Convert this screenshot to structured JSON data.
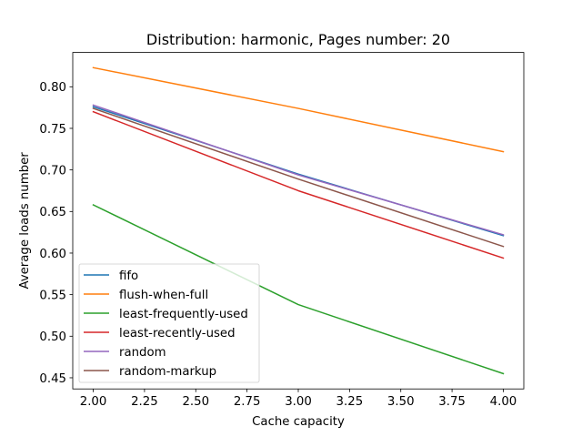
{
  "chart_data": {
    "type": "line",
    "title": "Distribution: harmonic, Pages number: 20",
    "xlabel": "Cache capacity",
    "ylabel": "Average loads number",
    "x": [
      2.0,
      3.0,
      4.0
    ],
    "xlim": [
      1.9,
      4.1
    ],
    "ylim": [
      0.4366,
      0.8413
    ],
    "xticks": [
      "2.00",
      "2.25",
      "2.50",
      "2.75",
      "3.00",
      "3.25",
      "3.50",
      "3.75",
      "4.00"
    ],
    "yticks": [
      "0.45",
      "0.50",
      "0.55",
      "0.60",
      "0.65",
      "0.70",
      "0.75",
      "0.80"
    ],
    "grid": false,
    "legend_position": "lower-left",
    "series": [
      {
        "name": "fifo",
        "color": "#1f77b4",
        "values": [
          0.776,
          0.695,
          0.621
        ]
      },
      {
        "name": "flush-when-full",
        "color": "#ff7f0e",
        "values": [
          0.823,
          0.774,
          0.722
        ]
      },
      {
        "name": "least-frequently-used",
        "color": "#2ca02c",
        "values": [
          0.658,
          0.538,
          0.455
        ]
      },
      {
        "name": "least-recently-used",
        "color": "#d62728",
        "values": [
          0.77,
          0.675,
          0.594
        ]
      },
      {
        "name": "random",
        "color": "#9467bd",
        "values": [
          0.778,
          0.694,
          0.622
        ]
      },
      {
        "name": "random-markup",
        "color": "#8c564b",
        "values": [
          0.774,
          0.689,
          0.608
        ]
      }
    ]
  }
}
